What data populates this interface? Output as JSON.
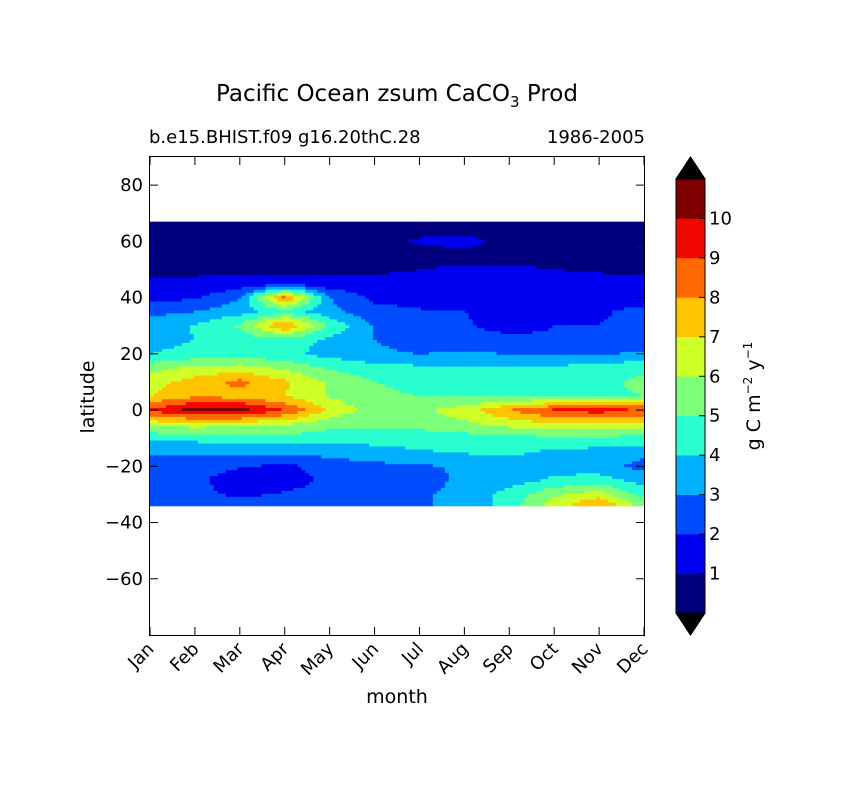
{
  "chart_data": {
    "type": "heatmap",
    "title_main": "Pacific Ocean zsum CaCO",
    "title_sub": "3",
    "title_end": " Prod",
    "left_label": "b.e15.BHIST.f09 g16.20thC.28",
    "right_label": "1986-2005",
    "xlabel": "month",
    "ylabel": "latitude",
    "x_categories": [
      "Jan",
      "Feb",
      "Mar",
      "Apr",
      "May",
      "Jun",
      "Jul",
      "Aug",
      "Sep",
      "Oct",
      "Nov",
      "Dec"
    ],
    "ylim": [
      -80,
      90
    ],
    "y_ticks": [
      80,
      60,
      40,
      20,
      0,
      -20,
      -40,
      -60
    ],
    "data_lat_range": [
      -34,
      67
    ],
    "colorbar": {
      "label_main": "g C m",
      "label_exp1": "−2",
      "label_mid": " y",
      "label_exp2": "−1",
      "ticks": [
        1,
        2,
        3,
        4,
        5,
        6,
        7,
        8,
        9,
        10
      ],
      "levels": [
        0,
        1,
        2,
        3,
        4,
        5,
        6,
        7,
        8,
        9,
        10,
        11
      ],
      "colors": [
        "#00007f",
        "#0000f1",
        "#004cff",
        "#00b0ff",
        "#29ffce",
        "#7dff7a",
        "#ceff29",
        "#ffc400",
        "#ff6800",
        "#f10800",
        "#7f0000"
      ],
      "extend_color": "#000000"
    },
    "latitudes": [
      -34,
      -30,
      -25,
      -20,
      -15,
      -10,
      -5,
      0,
      5,
      10,
      15,
      20,
      25,
      30,
      35,
      40,
      45,
      50,
      55,
      60,
      67
    ],
    "values": [
      [
        2.6,
        2.5,
        2.6,
        2.6,
        2.5,
        2.6,
        2.9,
        3.2,
        4.5,
        6.5,
        8.2,
        5.5,
        2.5
      ],
      [
        2.5,
        2.3,
        1.8,
        2.1,
        2.3,
        2.6,
        2.9,
        3.2,
        4.4,
        5.8,
        6.5,
        4.6,
        2.5
      ],
      [
        2.5,
        2.2,
        1.5,
        1.6,
        2.2,
        2.5,
        2.8,
        3.1,
        3.5,
        4.2,
        4.5,
        3.6,
        2.5
      ],
      [
        2.6,
        2.3,
        2.1,
        1.8,
        2.4,
        2.7,
        2.9,
        3.1,
        3.5,
        3.6,
        3.4,
        2.6,
        2.6
      ],
      [
        3.2,
        3.2,
        3.2,
        3.2,
        3.4,
        3.7,
        3.9,
        4.1,
        4.2,
        3.8,
        3.6,
        3.4,
        3.2
      ],
      [
        4.2,
        4.3,
        4.5,
        4.6,
        4.4,
        4.3,
        4.4,
        4.5,
        4.6,
        4.8,
        4.8,
        4.6,
        4.2
      ],
      [
        6.4,
        6.5,
        6.4,
        6.2,
        5.4,
        5.2,
        5.4,
        5.8,
        6.4,
        6.8,
        6.9,
        6.6,
        6.4
      ],
      [
        9.2,
        10.4,
        10.4,
        9.0,
        6.8,
        5.5,
        5.8,
        6.5,
        8.0,
        9.2,
        9.5,
        9.0,
        9.2
      ],
      [
        7.0,
        7.8,
        7.6,
        7.0,
        5.9,
        5.2,
        5.0,
        4.8,
        4.7,
        4.7,
        4.8,
        5.0,
        7.0
      ],
      [
        6.5,
        7.5,
        8.3,
        7.2,
        5.8,
        5.0,
        4.7,
        4.4,
        4.5,
        4.6,
        4.8,
        5.2,
        6.5
      ],
      [
        5.6,
        6.2,
        6.4,
        5.8,
        4.9,
        4.4,
        4.2,
        4.0,
        4.1,
        4.2,
        4.4,
        4.8,
        5.6
      ],
      [
        4.0,
        4.3,
        4.4,
        4.3,
        3.6,
        3.2,
        3.0,
        3.1,
        3.0,
        2.9,
        2.9,
        3.2,
        4.0
      ],
      [
        3.6,
        4.0,
        4.4,
        4.6,
        3.8,
        3.0,
        2.4,
        2.3,
        2.2,
        2.1,
        2.1,
        2.3,
        3.6
      ],
      [
        3.4,
        4.1,
        5.2,
        8.2,
        4.8,
        2.9,
        2.3,
        2.1,
        1.7,
        2.0,
        2.0,
        2.3,
        3.4
      ],
      [
        2.7,
        3.0,
        3.6,
        4.6,
        3.3,
        2.3,
        2.1,
        2.0,
        1.7,
        1.9,
        1.9,
        2.2,
        2.7
      ],
      [
        1.6,
        1.9,
        2.9,
        8.5,
        3.0,
        1.8,
        1.6,
        1.6,
        1.7,
        1.8,
        1.8,
        1.7,
        1.6
      ],
      [
        1.2,
        1.2,
        1.3,
        1.5,
        1.3,
        1.2,
        1.1,
        1.2,
        1.3,
        1.3,
        1.3,
        1.2,
        1.2
      ],
      [
        0.8,
        0.8,
        0.8,
        0.8,
        0.8,
        0.9,
        1.0,
        1.1,
        1.1,
        1.0,
        0.9,
        0.8,
        0.8
      ],
      [
        0.6,
        0.6,
        0.6,
        0.6,
        0.6,
        0.6,
        0.7,
        0.8,
        0.8,
        0.7,
        0.6,
        0.6,
        0.6
      ],
      [
        0.5,
        0.5,
        0.5,
        0.5,
        0.5,
        0.7,
        1.1,
        1.2,
        0.8,
        0.6,
        0.5,
        0.5,
        0.5
      ],
      [
        0.5,
        0.5,
        0.5,
        0.5,
        0.5,
        0.5,
        0.5,
        0.5,
        0.5,
        0.5,
        0.5,
        0.5,
        0.5
      ]
    ]
  }
}
